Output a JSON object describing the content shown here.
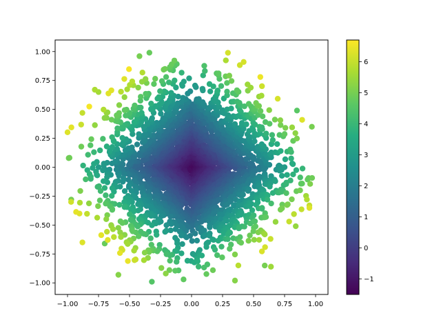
{
  "chart_data": {
    "type": "scatter",
    "title": "",
    "xlabel": "",
    "ylabel": "",
    "xlim": [
      -1.1,
      1.1
    ],
    "ylim": [
      -1.1,
      1.1
    ],
    "xticks": [
      -1.0,
      -0.75,
      -0.5,
      -0.25,
      0.0,
      0.25,
      0.5,
      0.75,
      1.0
    ],
    "xtick_labels": [
      "−1.00",
      "−0.75",
      "−0.50",
      "−0.25",
      "0.00",
      "0.25",
      "0.50",
      "0.75",
      "1.00"
    ],
    "yticks": [
      -1.0,
      -0.75,
      -0.5,
      -0.25,
      0.0,
      0.25,
      0.5,
      0.75,
      1.0
    ],
    "ytick_labels": [
      "−1.00",
      "−0.75",
      "−0.50",
      "−0.25",
      "0.00",
      "0.25",
      "0.50",
      "0.75",
      "1.00"
    ],
    "grid": false,
    "legend": "none",
    "colormap": "viridis",
    "color_range": [
      -1.5,
      6.7
    ],
    "colorbar_ticks": [
      -1,
      0,
      1,
      2,
      3,
      4,
      5,
      6
    ],
    "colorbar_tick_labels": [
      "−1",
      "0",
      "1",
      "2",
      "3",
      "4",
      "5",
      "6"
    ],
    "color_rule": "c ≈ 6.0·(|x|+|y|) − 1.5 (visually estimated)",
    "point_count_estimate": 3000,
    "points": [
      {
        "x": 0.42,
        "y": 0.91,
        "c": 6.2
      },
      {
        "x": -0.78,
        "y": 0.67,
        "c": 5.7
      },
      {
        "x": -0.75,
        "y": 0.65,
        "c": 5.6
      },
      {
        "x": -0.88,
        "y": 0.47,
        "c": 6.0
      },
      {
        "x": -0.88,
        "y": -0.65,
        "c": 6.3
      },
      {
        "x": 0.95,
        "y": -0.33,
        "c": 6.0
      },
      {
        "x": 0.84,
        "y": -0.51,
        "c": 5.4
      },
      {
        "x": -0.42,
        "y": 0.96,
        "c": 5.0
      },
      {
        "x": -0.34,
        "y": 0.99,
        "c": 4.8
      },
      {
        "x": 0.35,
        "y": -0.98,
        "c": 5.2
      },
      {
        "x": -0.32,
        "y": -0.99,
        "c": 4.5
      },
      {
        "x": 0.64,
        "y": -0.86,
        "c": 5.5
      },
      {
        "x": 0.59,
        "y": -0.85,
        "c": 5.0
      },
      {
        "x": -0.7,
        "y": -0.66,
        "c": 4.8
      },
      {
        "x": -0.59,
        "y": -0.93,
        "c": 5.2
      },
      {
        "x": -0.97,
        "y": -0.28,
        "c": 5.0
      },
      {
        "x": 0.97,
        "y": 0.35,
        "c": 5.0
      },
      {
        "x": 0.85,
        "y": 0.49,
        "c": 4.6
      },
      {
        "x": 0.69,
        "y": 0.2,
        "c": 3.6
      },
      {
        "x": 0.0,
        "y": 0.0,
        "c": -1.3
      },
      {
        "x": 0.05,
        "y": 0.03,
        "c": -1.0
      },
      {
        "x": -0.05,
        "y": -0.04,
        "c": -1.0
      },
      {
        "x": 0.25,
        "y": 0.25,
        "c": 1.5
      },
      {
        "x": -0.25,
        "y": -0.25,
        "c": 1.5
      },
      {
        "x": 0.5,
        "y": 0.0,
        "c": 1.5
      },
      {
        "x": 0.0,
        "y": 0.5,
        "c": 1.5
      },
      {
        "x": -0.5,
        "y": 0.0,
        "c": 1.5
      },
      {
        "x": 0.0,
        "y": -0.5,
        "c": 1.5
      },
      {
        "x": 0.75,
        "y": 0.0,
        "c": 3.0
      },
      {
        "x": -0.75,
        "y": 0.0,
        "c": 3.0
      }
    ]
  }
}
